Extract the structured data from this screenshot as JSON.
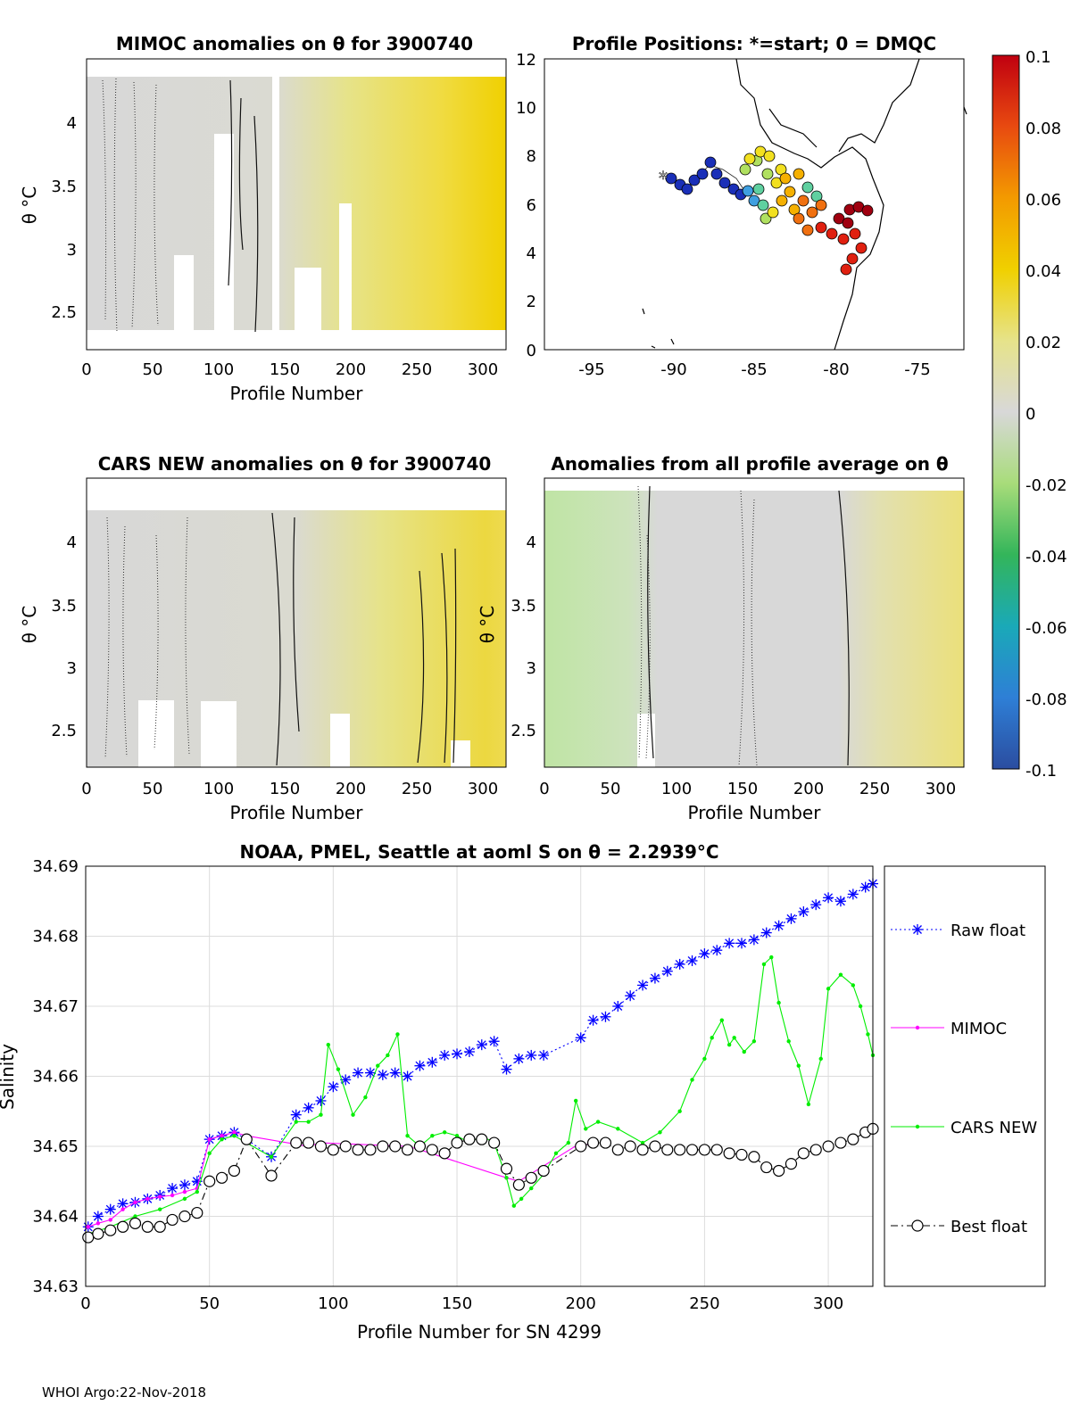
{
  "footer": "WHOI Argo:22-Nov-2018",
  "panels": {
    "mimoc": {
      "title": "MIMOC anomalies on θ  for 3900740",
      "xlabel": "Profile Number",
      "ylabel": "θ °C",
      "xticks": [
        "0",
        "50",
        "100",
        "150",
        "200",
        "250",
        "300"
      ],
      "yticks": [
        "4",
        "3.5",
        "3",
        "2.5"
      ]
    },
    "positions": {
      "title": "Profile Positions: *=start; 0 = DMQC",
      "xticks": [
        "-95",
        "-90",
        "-85",
        "-80",
        "-75"
      ],
      "yticks": [
        "12",
        "10",
        "8",
        "6",
        "4",
        "2",
        "0"
      ]
    },
    "cars": {
      "title": "CARS NEW anomalies on θ for 3900740",
      "xlabel": "Profile Number",
      "ylabel": "θ °C",
      "xticks": [
        "0",
        "50",
        "100",
        "150",
        "200",
        "250",
        "300"
      ],
      "yticks": [
        "4",
        "3.5",
        "3",
        "2.5"
      ]
    },
    "avg": {
      "title": "Anomalies from all profile average on θ",
      "xlabel": "Profile Number",
      "ylabel": "θ °C",
      "xticks": [
        "0",
        "50",
        "100",
        "150",
        "200",
        "250",
        "300"
      ],
      "yticks": [
        "4",
        "3.5",
        "3",
        "2.5"
      ]
    },
    "colorbar": {
      "ticks": [
        "0.1",
        "0.08",
        "0.06",
        "0.04",
        "0.02",
        "0",
        "-0.02",
        "-0.04",
        "-0.06",
        "-0.08",
        "-0.1"
      ]
    }
  },
  "chart_data": {
    "type": "line",
    "title": "NOAA, PMEL, Seattle at aoml S on θ = 2.2939°C",
    "xlabel": "Profile Number for SN 4299",
    "ylabel": "Salinity",
    "xlim": [
      0,
      318
    ],
    "ylim": [
      34.63,
      34.69
    ],
    "xticks": [
      0,
      50,
      100,
      150,
      200,
      250,
      300
    ],
    "yticks": [
      34.63,
      34.64,
      34.65,
      34.66,
      34.67,
      34.68,
      34.69
    ],
    "grid": true,
    "legend_position": "right",
    "series": [
      {
        "name": "Raw float",
        "color": "#0000ff",
        "marker": "asterisk",
        "line": "dotted",
        "x": [
          1,
          5,
          10,
          15,
          20,
          25,
          30,
          35,
          40,
          45,
          50,
          55,
          60,
          65,
          75,
          85,
          90,
          95,
          100,
          105,
          110,
          115,
          120,
          125,
          130,
          135,
          140,
          145,
          150,
          155,
          160,
          165,
          170,
          175,
          180,
          185,
          200,
          205,
          210,
          215,
          220,
          225,
          230,
          235,
          240,
          245,
          250,
          255,
          260,
          265,
          270,
          275,
          280,
          285,
          290,
          295,
          300,
          305,
          310,
          315,
          318
        ],
        "y": [
          34.6385,
          34.64,
          34.641,
          34.6418,
          34.642,
          34.6425,
          34.643,
          34.644,
          34.6445,
          34.645,
          34.651,
          34.6515,
          34.652,
          34.651,
          34.6485,
          34.6545,
          34.6555,
          34.6565,
          34.6585,
          34.6595,
          34.6605,
          34.6605,
          34.6602,
          34.6605,
          34.66,
          34.6615,
          34.662,
          34.663,
          34.6632,
          34.6635,
          34.6645,
          34.665,
          34.661,
          34.6625,
          34.663,
          34.663,
          34.6655,
          34.668,
          34.6685,
          34.67,
          34.6715,
          34.673,
          34.674,
          34.675,
          34.676,
          34.6765,
          34.6775,
          34.678,
          34.679,
          34.679,
          34.6795,
          34.6805,
          34.6815,
          34.6825,
          34.6835,
          34.6845,
          34.6855,
          34.685,
          34.686,
          34.687,
          34.6875
        ]
      },
      {
        "name": "MIMOC",
        "color": "#ff00ff",
        "marker": "dot",
        "line": "solid",
        "x": [
          1,
          5,
          10,
          15,
          20,
          25,
          30,
          35,
          40,
          45,
          50,
          55,
          60,
          65,
          90,
          95,
          130,
          135,
          170,
          175,
          200,
          205
        ],
        "y": [
          34.6385,
          34.639,
          34.6395,
          34.641,
          34.642,
          34.6425,
          34.6428,
          34.643,
          34.6435,
          34.644,
          34.651,
          34.6515,
          34.652,
          34.6515,
          34.65,
          34.6505,
          34.65,
          34.6495,
          34.6455,
          34.645,
          34.6505,
          34.65
        ]
      },
      {
        "name": "CARS NEW",
        "color": "#00ee00",
        "marker": "dot",
        "line": "solid",
        "x": [
          1,
          10,
          20,
          30,
          40,
          45,
          50,
          55,
          60,
          65,
          75,
          85,
          90,
          95,
          98,
          102,
          108,
          113,
          118,
          122,
          126,
          130,
          135,
          140,
          145,
          150,
          155,
          160,
          165,
          170,
          173,
          176,
          180,
          185,
          190,
          195,
          198,
          202,
          207,
          215,
          225,
          232,
          240,
          245,
          250,
          253,
          257,
          260,
          262,
          266,
          270,
          274,
          277,
          280,
          284,
          288,
          292,
          297,
          300,
          305,
          310,
          313,
          316,
          318
        ],
        "y": [
          34.6375,
          34.6385,
          34.64,
          34.641,
          34.6425,
          34.6435,
          34.649,
          34.651,
          34.6515,
          34.6505,
          34.6485,
          34.6535,
          34.6535,
          34.6545,
          34.6645,
          34.661,
          34.6545,
          34.657,
          34.6615,
          34.663,
          34.666,
          34.6515,
          34.65,
          34.6515,
          34.652,
          34.6515,
          34.6505,
          34.6515,
          34.6505,
          34.6455,
          34.6415,
          34.6425,
          34.644,
          34.646,
          34.649,
          34.6505,
          34.6565,
          34.6525,
          34.6535,
          34.6525,
          34.6505,
          34.652,
          34.655,
          34.6595,
          34.6625,
          34.6655,
          34.668,
          34.6645,
          34.6655,
          34.6635,
          34.665,
          34.676,
          34.677,
          34.6705,
          34.665,
          34.6615,
          34.656,
          34.6625,
          34.6725,
          34.6745,
          34.673,
          34.67,
          34.666,
          34.663
        ]
      },
      {
        "name": "Best float",
        "color": "#000000",
        "marker": "open-circle",
        "line": "dash-dot",
        "x": [
          1,
          5,
          10,
          15,
          20,
          25,
          30,
          35,
          40,
          45,
          50,
          55,
          60,
          65,
          75,
          85,
          90,
          95,
          100,
          105,
          110,
          115,
          120,
          125,
          130,
          135,
          140,
          145,
          150,
          155,
          160,
          165,
          170,
          175,
          180,
          185,
          200,
          205,
          210,
          215,
          220,
          225,
          230,
          235,
          240,
          245,
          250,
          255,
          260,
          265,
          270,
          275,
          280,
          285,
          290,
          295,
          300,
          305,
          310,
          315,
          318
        ],
        "y": [
          34.637,
          34.6375,
          34.638,
          34.6385,
          34.639,
          34.6385,
          34.6385,
          34.6395,
          34.64,
          34.6405,
          34.645,
          34.6455,
          34.6465,
          34.651,
          34.6458,
          34.6505,
          34.6505,
          34.65,
          34.6495,
          34.65,
          34.6495,
          34.6495,
          34.65,
          34.65,
          34.6495,
          34.65,
          34.6495,
          34.649,
          34.6505,
          34.651,
          34.651,
          34.6505,
          34.6468,
          34.6445,
          34.6455,
          34.6465,
          34.65,
          34.6505,
          34.6505,
          34.6495,
          34.65,
          34.6495,
          34.65,
          34.6495,
          34.6495,
          34.6495,
          34.6495,
          34.6495,
          34.649,
          34.6488,
          34.6485,
          34.647,
          34.6465,
          34.6475,
          34.649,
          34.6495,
          34.65,
          34.6505,
          34.651,
          34.652,
          34.6525
        ]
      }
    ]
  }
}
